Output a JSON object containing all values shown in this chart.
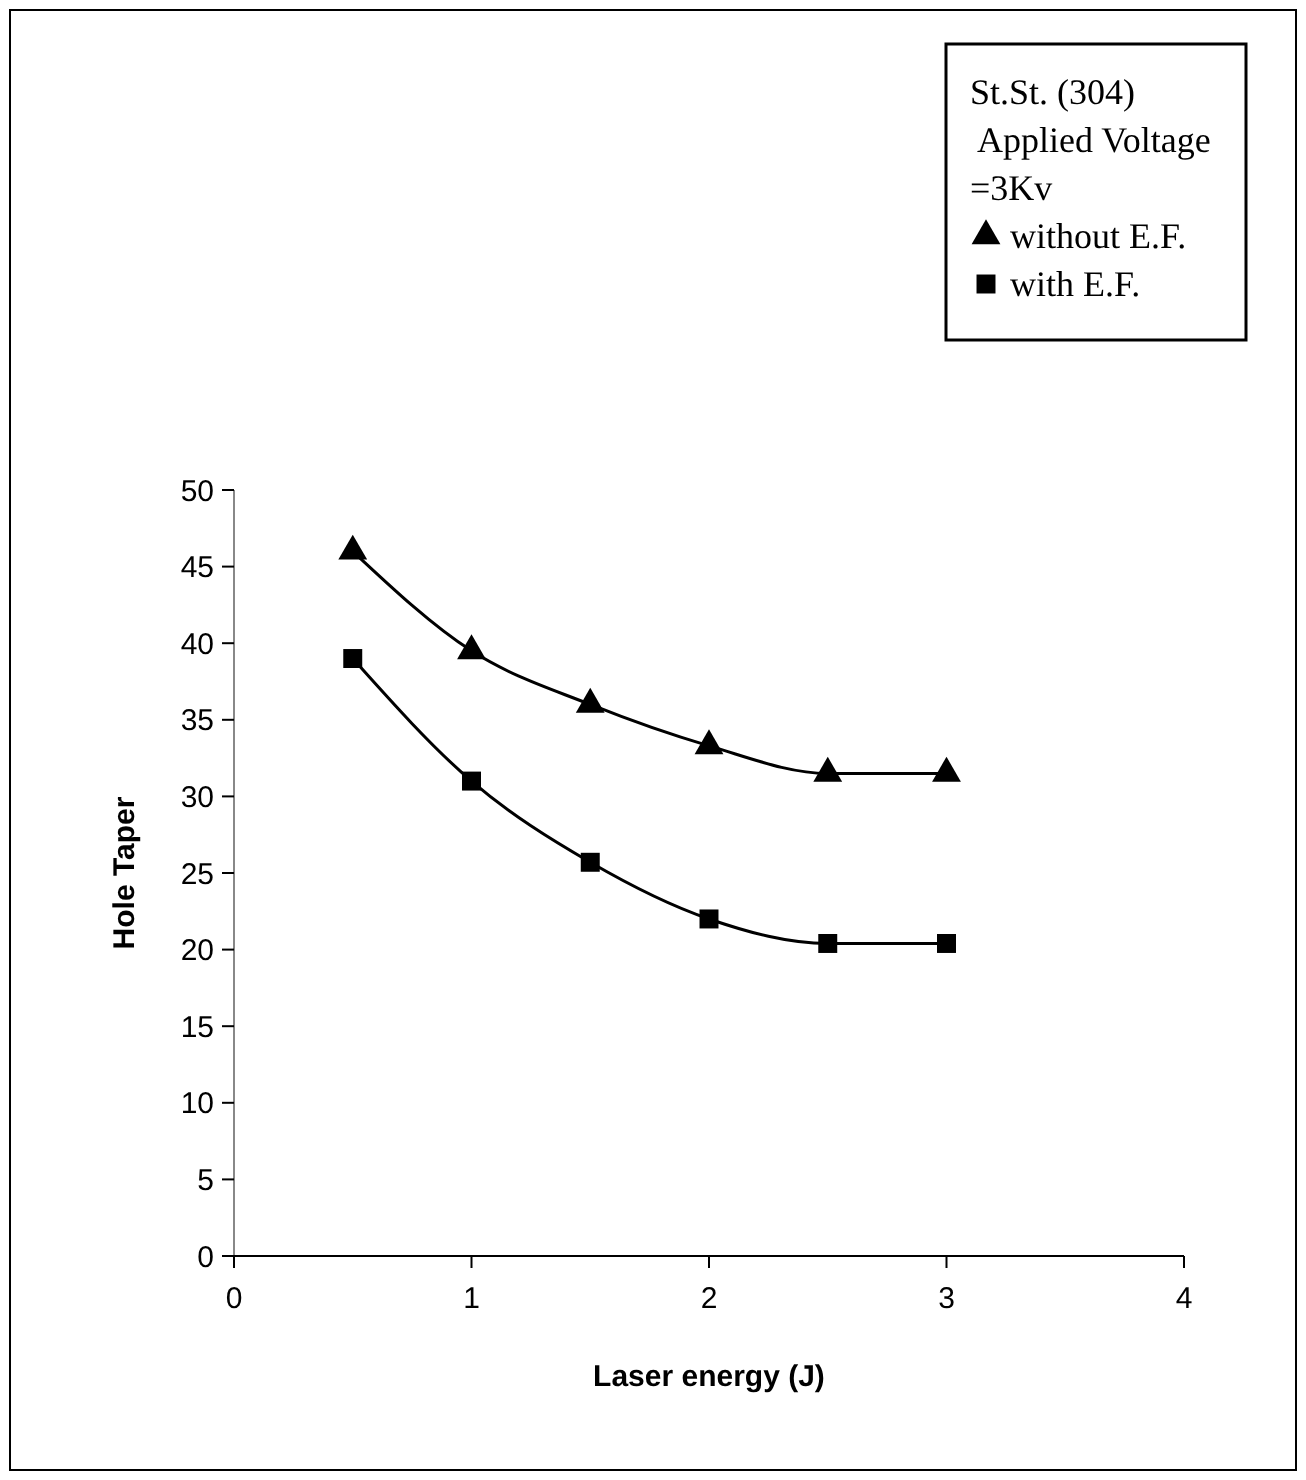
{
  "chart_data": {
    "type": "line",
    "xlabel": "Laser energy (J)",
    "ylabel": "Hole Taper",
    "legend_title": "St.St. (304)\n Applied Voltage\n=3Kv",
    "x": [
      0.5,
      1,
      1.5,
      2,
      2.5,
      3
    ],
    "xlim": [
      0,
      4
    ],
    "xticks": [
      0,
      1,
      2,
      3,
      4
    ],
    "ylim": [
      0,
      50
    ],
    "yticks": [
      0,
      5,
      10,
      15,
      20,
      25,
      30,
      35,
      40,
      45,
      50
    ],
    "grid": false,
    "legend": "top right",
    "line_style": "solid",
    "series": [
      {
        "name": "without E.F.",
        "color": "#000000",
        "marker": "triangle",
        "values": [
          46,
          39.5,
          36,
          33.3,
          31.5,
          31.5
        ]
      },
      {
        "name": "with E.F.",
        "color": "#000000",
        "marker": "square",
        "values": [
          39,
          31,
          25.7,
          22,
          20.4,
          20.4
        ]
      }
    ]
  }
}
